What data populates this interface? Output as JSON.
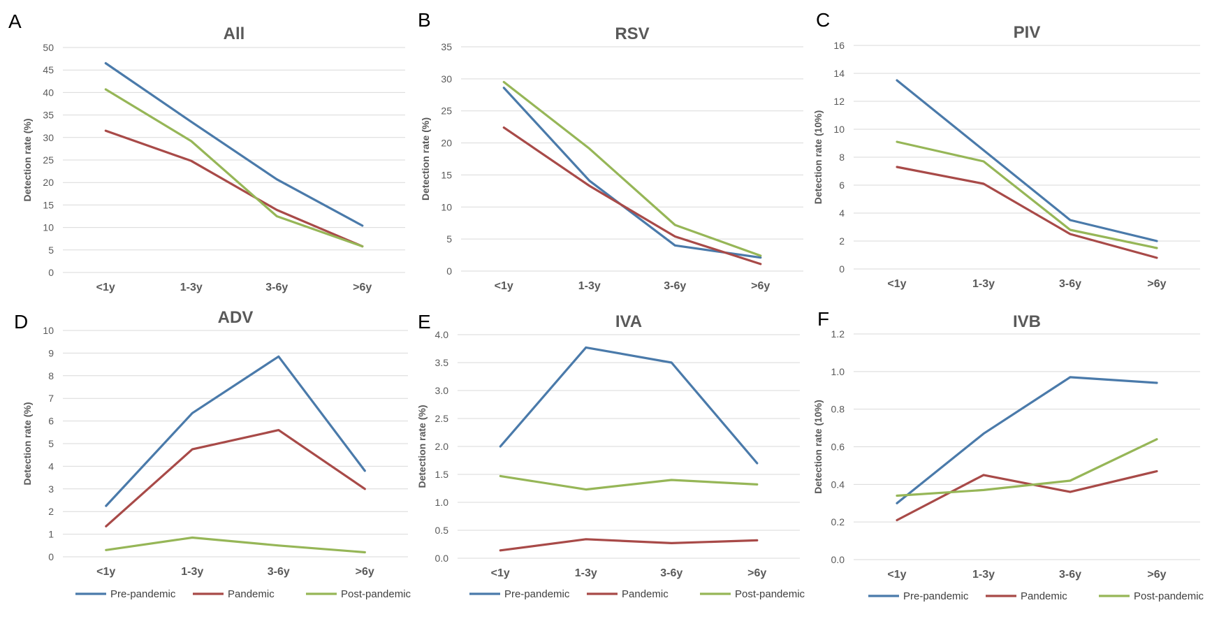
{
  "colors": {
    "pre": "#4A7AAA",
    "pandemic": "#A84A48",
    "post": "#96B657",
    "grid": "#D9D9D9"
  },
  "legend": {
    "series": [
      "Pre-pandemic",
      "Pandemic",
      "Post-pandemic"
    ]
  },
  "chart_data": [
    {
      "type": "line",
      "letter": "A",
      "title": "All",
      "ylabel": "Detection rate (%)",
      "categories": [
        "<1y",
        "1-3y",
        "3-6y",
        ">6y"
      ],
      "ylim": [
        0,
        50
      ],
      "step": 5,
      "decimals": 0,
      "series": [
        {
          "name": "Pre-pandemic",
          "key": "pre",
          "values": [
            46.5,
            33.5,
            20.7,
            10.4
          ]
        },
        {
          "name": "Pandemic",
          "key": "pandemic",
          "values": [
            31.5,
            24.8,
            13.9,
            5.8
          ]
        },
        {
          "name": "Post-pandemic",
          "key": "post",
          "values": [
            40.7,
            29.2,
            12.5,
            5.8
          ]
        }
      ]
    },
    {
      "type": "line",
      "letter": "B",
      "title": "RSV",
      "ylabel": "Detection rate (%)",
      "categories": [
        "<1y",
        "1-3y",
        "3-6y",
        ">6y"
      ],
      "ylim": [
        0,
        35
      ],
      "step": 5,
      "decimals": 0,
      "series": [
        {
          "name": "Pre-pandemic",
          "key": "pre",
          "values": [
            28.6,
            14.1,
            4.0,
            2.1
          ]
        },
        {
          "name": "Pandemic",
          "key": "pandemic",
          "values": [
            22.4,
            13.3,
            5.4,
            1.1
          ]
        },
        {
          "name": "Post-pandemic",
          "key": "post",
          "values": [
            29.5,
            19.1,
            7.2,
            2.4
          ]
        }
      ]
    },
    {
      "type": "line",
      "letter": "C",
      "title": "PIV",
      "ylabel": "Detection rate (10%)",
      "categories": [
        "<1y",
        "1-3y",
        "3-6y",
        ">6y"
      ],
      "ylim": [
        0,
        16
      ],
      "step": 2,
      "decimals": 0,
      "series": [
        {
          "name": "Pre-pandemic",
          "key": "pre",
          "values": [
            13.5,
            8.5,
            3.5,
            2.0
          ]
        },
        {
          "name": "Pandemic",
          "key": "pandemic",
          "values": [
            7.3,
            6.1,
            2.5,
            0.8
          ]
        },
        {
          "name": "Post-pandemic",
          "key": "post",
          "values": [
            9.1,
            7.7,
            2.8,
            1.5
          ]
        }
      ]
    },
    {
      "type": "line",
      "letter": "D",
      "title": "ADV",
      "ylabel": "Detection rate (%)",
      "categories": [
        "<1y",
        "1-3y",
        "3-6y",
        ">6y"
      ],
      "ylim": [
        0,
        10
      ],
      "step": 1,
      "decimals": 0,
      "series": [
        {
          "name": "Pre-pandemic",
          "key": "pre",
          "values": [
            2.25,
            6.35,
            8.85,
            3.8
          ]
        },
        {
          "name": "Pandemic",
          "key": "pandemic",
          "values": [
            1.35,
            4.75,
            5.6,
            3.0
          ]
        },
        {
          "name": "Post-pandemic",
          "key": "post",
          "values": [
            0.3,
            0.85,
            0.5,
            0.2
          ]
        }
      ]
    },
    {
      "type": "line",
      "letter": "E",
      "title": "IVA",
      "ylabel": "Detection rate (%)",
      "categories": [
        "<1y",
        "1-3y",
        "3-6y",
        ">6y"
      ],
      "ylim": [
        0,
        4
      ],
      "step": 0.5,
      "decimals": 1,
      "series": [
        {
          "name": "Pre-pandemic",
          "key": "pre",
          "values": [
            2.0,
            3.77,
            3.5,
            1.7
          ]
        },
        {
          "name": "Pandemic",
          "key": "pandemic",
          "values": [
            0.14,
            0.34,
            0.27,
            0.32
          ]
        },
        {
          "name": "Post-pandemic",
          "key": "post",
          "values": [
            1.47,
            1.23,
            1.4,
            1.32
          ]
        }
      ]
    },
    {
      "type": "line",
      "letter": "F",
      "title": "IVB",
      "ylabel": "Detection rate (10%)",
      "categories": [
        "<1y",
        "1-3y",
        "3-6y",
        ">6y"
      ],
      "ylim": [
        0,
        1.2
      ],
      "step": 0.2,
      "decimals": 1,
      "series": [
        {
          "name": "Pre-pandemic",
          "key": "pre",
          "values": [
            0.3,
            0.67,
            0.97,
            0.94
          ]
        },
        {
          "name": "Pandemic",
          "key": "pandemic",
          "values": [
            0.21,
            0.45,
            0.36,
            0.47
          ]
        },
        {
          "name": "Post-pandemic",
          "key": "post",
          "values": [
            0.34,
            0.37,
            0.42,
            0.64
          ]
        }
      ]
    }
  ]
}
